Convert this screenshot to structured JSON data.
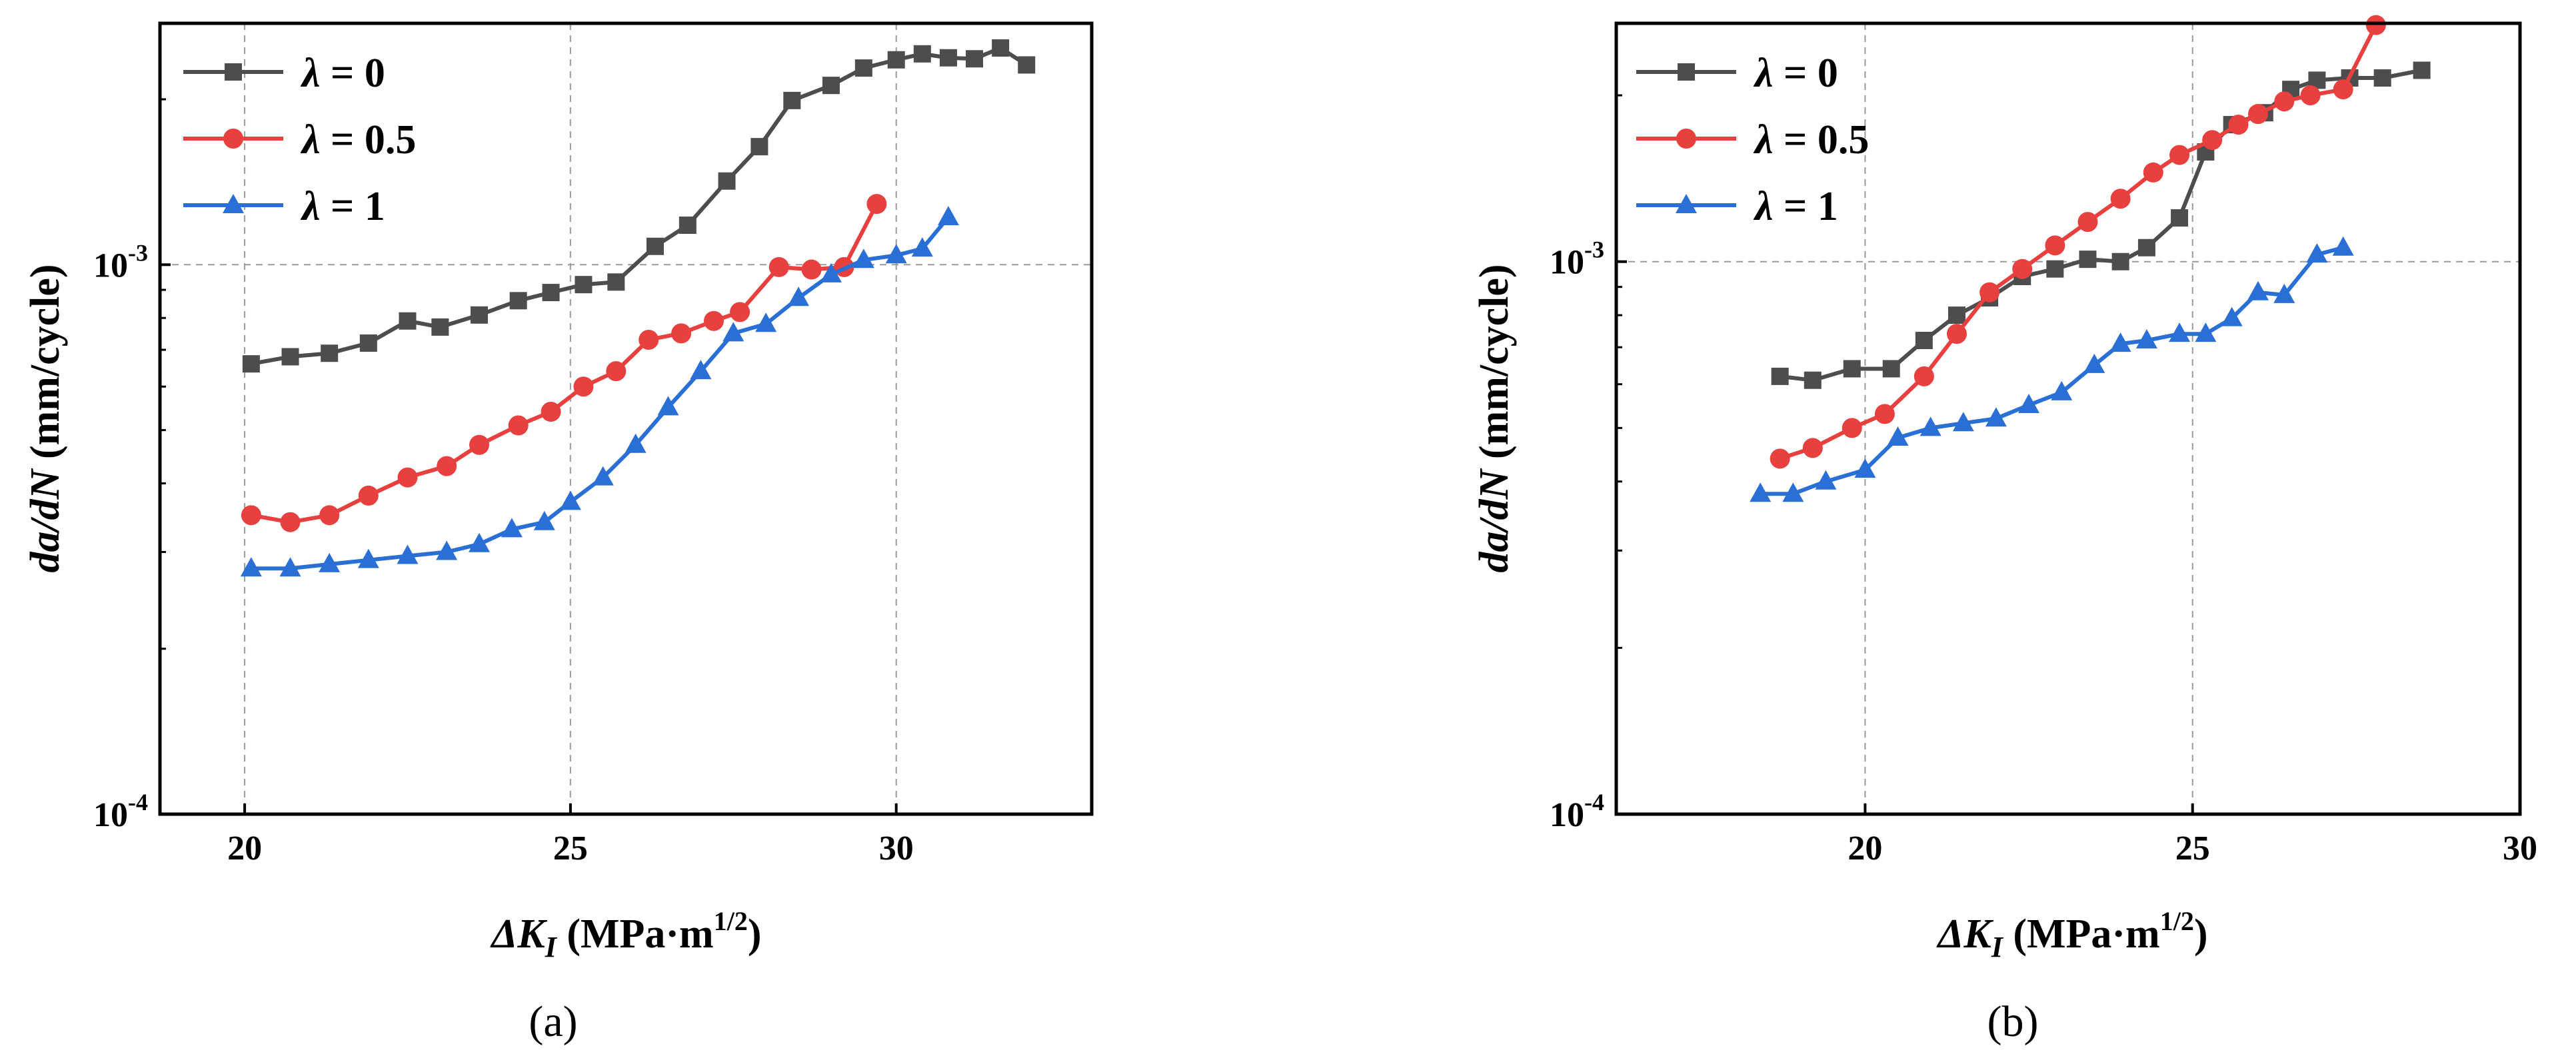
{
  "chart_data": [
    {
      "type": "line",
      "panel_label": "a",
      "caption": "(a)",
      "xlabel": {
        "main": "ΔK",
        "sub": "I",
        "units_pre": " (MPa·m",
        "units_sup": "1/2",
        "units_post": ")"
      },
      "ylabel": {
        "main": "da/dN",
        "units": " (mm/cycle)"
      },
      "x_scale": "linear",
      "y_scale": "log",
      "xlim": [
        18.7,
        33.0
      ],
      "ylim": [
        0.0001,
        0.00275
      ],
      "xticks": [
        20,
        25,
        30
      ],
      "xtick_labels": [
        "20",
        "25",
        "30"
      ],
      "yticks": [
        0.0001,
        0.001
      ],
      "ytick_labels": [
        {
          "base": "10",
          "exp": "-4"
        },
        {
          "base": "10",
          "exp": "-3"
        }
      ],
      "grid": true,
      "legend_position": "top-left",
      "series": [
        {
          "name": "λ = 0",
          "symbol": "λ",
          "value_text": " = 0",
          "marker": "square",
          "color": "#4d4d4d",
          "x": [
            20.1,
            20.7,
            21.3,
            21.9,
            22.5,
            23.0,
            23.6,
            24.2,
            24.7,
            25.2,
            25.7,
            26.3,
            26.8,
            27.4,
            27.9,
            28.4,
            29.0,
            29.5,
            30.0,
            30.4,
            30.8,
            31.2,
            31.6,
            32.0
          ],
          "y": [
            0.00066,
            0.00068,
            0.00069,
            0.00072,
            0.00079,
            0.00077,
            0.00081,
            0.00086,
            0.00089,
            0.00092,
            0.00093,
            0.00108,
            0.00118,
            0.00142,
            0.00164,
            0.00199,
            0.00212,
            0.00228,
            0.00236,
            0.00242,
            0.00238,
            0.00237,
            0.00248,
            0.00231
          ]
        },
        {
          "name": "λ = 0.5",
          "symbol": "λ",
          "value_text": " = 0.5",
          "marker": "circle",
          "color": "#e8403f",
          "x": [
            20.1,
            20.7,
            21.3,
            21.9,
            22.5,
            23.1,
            23.6,
            24.2,
            24.7,
            25.2,
            25.7,
            26.2,
            26.7,
            27.2,
            27.6,
            28.2,
            28.7,
            29.2,
            29.7
          ],
          "y": [
            0.00035,
            0.00034,
            0.00035,
            0.00038,
            0.00041,
            0.00043,
            0.00047,
            0.00051,
            0.00054,
            0.0006,
            0.00064,
            0.00073,
            0.00075,
            0.00079,
            0.00082,
            0.00099,
            0.00098,
            0.00099,
            0.00129
          ]
        },
        {
          "name": "λ = 1",
          "symbol": "λ",
          "value_text": " = 1",
          "marker": "triangle",
          "color": "#2a6fd6",
          "x": [
            20.1,
            20.7,
            21.3,
            21.9,
            22.5,
            23.1,
            23.6,
            24.1,
            24.6,
            25.0,
            25.5,
            26.0,
            26.5,
            27.0,
            27.5,
            28.0,
            28.5,
            29.0,
            29.5,
            30.0,
            30.4,
            30.8
          ],
          "y": [
            0.00028,
            0.00028,
            0.000285,
            0.00029,
            0.000295,
            0.0003,
            0.00031,
            0.00033,
            0.00034,
            0.00037,
            0.00041,
            0.00047,
            0.00055,
            0.00064,
            0.00075,
            0.00078,
            0.00087,
            0.00096,
            0.00102,
            0.00104,
            0.00107,
            0.00122
          ]
        }
      ]
    },
    {
      "type": "line",
      "panel_label": "b",
      "caption": "(b)",
      "xlabel": {
        "main": "ΔK",
        "sub": "I",
        "units_pre": " (MPa·m",
        "units_sup": "1/2",
        "units_post": ")"
      },
      "ylabel": {
        "main": "da/dN",
        "units": " (mm/cycle)"
      },
      "x_scale": "linear",
      "y_scale": "log",
      "xlim": [
        16.2,
        30.0
      ],
      "ylim": [
        0.0001,
        0.0027
      ],
      "xticks": [
        20,
        25,
        30
      ],
      "xtick_labels": [
        "20",
        "25",
        "30"
      ],
      "yticks": [
        0.0001,
        0.001
      ],
      "ytick_labels": [
        {
          "base": "10",
          "exp": "-4"
        },
        {
          "base": "10",
          "exp": "-3"
        }
      ],
      "grid": true,
      "legend_position": "top-left",
      "series": [
        {
          "name": "λ = 0",
          "symbol": "λ",
          "value_text": " = 0",
          "marker": "square",
          "color": "#4d4d4d",
          "x": [
            18.7,
            19.2,
            19.8,
            20.4,
            20.9,
            21.4,
            21.9,
            22.4,
            22.9,
            23.4,
            23.9,
            24.3,
            24.8,
            25.2,
            25.6,
            26.1,
            26.5,
            26.9,
            27.4,
            27.9,
            28.5
          ],
          "y": [
            0.00062,
            0.00061,
            0.00064,
            0.00064,
            0.00072,
            0.0008,
            0.00086,
            0.00094,
            0.00097,
            0.00101,
            0.001,
            0.00106,
            0.0012,
            0.00158,
            0.00177,
            0.00186,
            0.00205,
            0.00213,
            0.00215,
            0.00215,
            0.00222
          ]
        },
        {
          "name": "λ = 0.5",
          "symbol": "λ",
          "value_text": " = 0.5",
          "marker": "circle",
          "color": "#e8403f",
          "x": [
            18.7,
            19.2,
            19.8,
            20.3,
            20.9,
            21.4,
            21.9,
            22.4,
            22.9,
            23.4,
            23.9,
            24.4,
            24.8,
            25.3,
            25.7,
            26.0,
            26.4,
            26.8,
            27.3,
            27.8
          ],
          "y": [
            0.00044,
            0.00046,
            0.0005,
            0.00053,
            0.00062,
            0.00074,
            0.00088,
            0.00097,
            0.00107,
            0.00118,
            0.0013,
            0.00145,
            0.00156,
            0.00166,
            0.00177,
            0.00185,
            0.00195,
            0.002,
            0.00205,
            0.00268
          ]
        },
        {
          "name": "λ = 1",
          "symbol": "λ",
          "value_text": " = 1",
          "marker": "triangle",
          "color": "#2a6fd6",
          "x": [
            18.4,
            18.9,
            19.4,
            20.0,
            20.5,
            21.0,
            21.5,
            22.0,
            22.5,
            23.0,
            23.5,
            23.9,
            24.3,
            24.8,
            25.2,
            25.6,
            26.0,
            26.4,
            26.9,
            27.3
          ],
          "y": [
            0.00038,
            0.00038,
            0.0004,
            0.00042,
            0.00048,
            0.0005,
            0.00051,
            0.00052,
            0.00055,
            0.00058,
            0.00065,
            0.00071,
            0.00072,
            0.00074,
            0.00074,
            0.00079,
            0.00088,
            0.00087,
            0.00103,
            0.00106
          ]
        }
      ]
    }
  ]
}
